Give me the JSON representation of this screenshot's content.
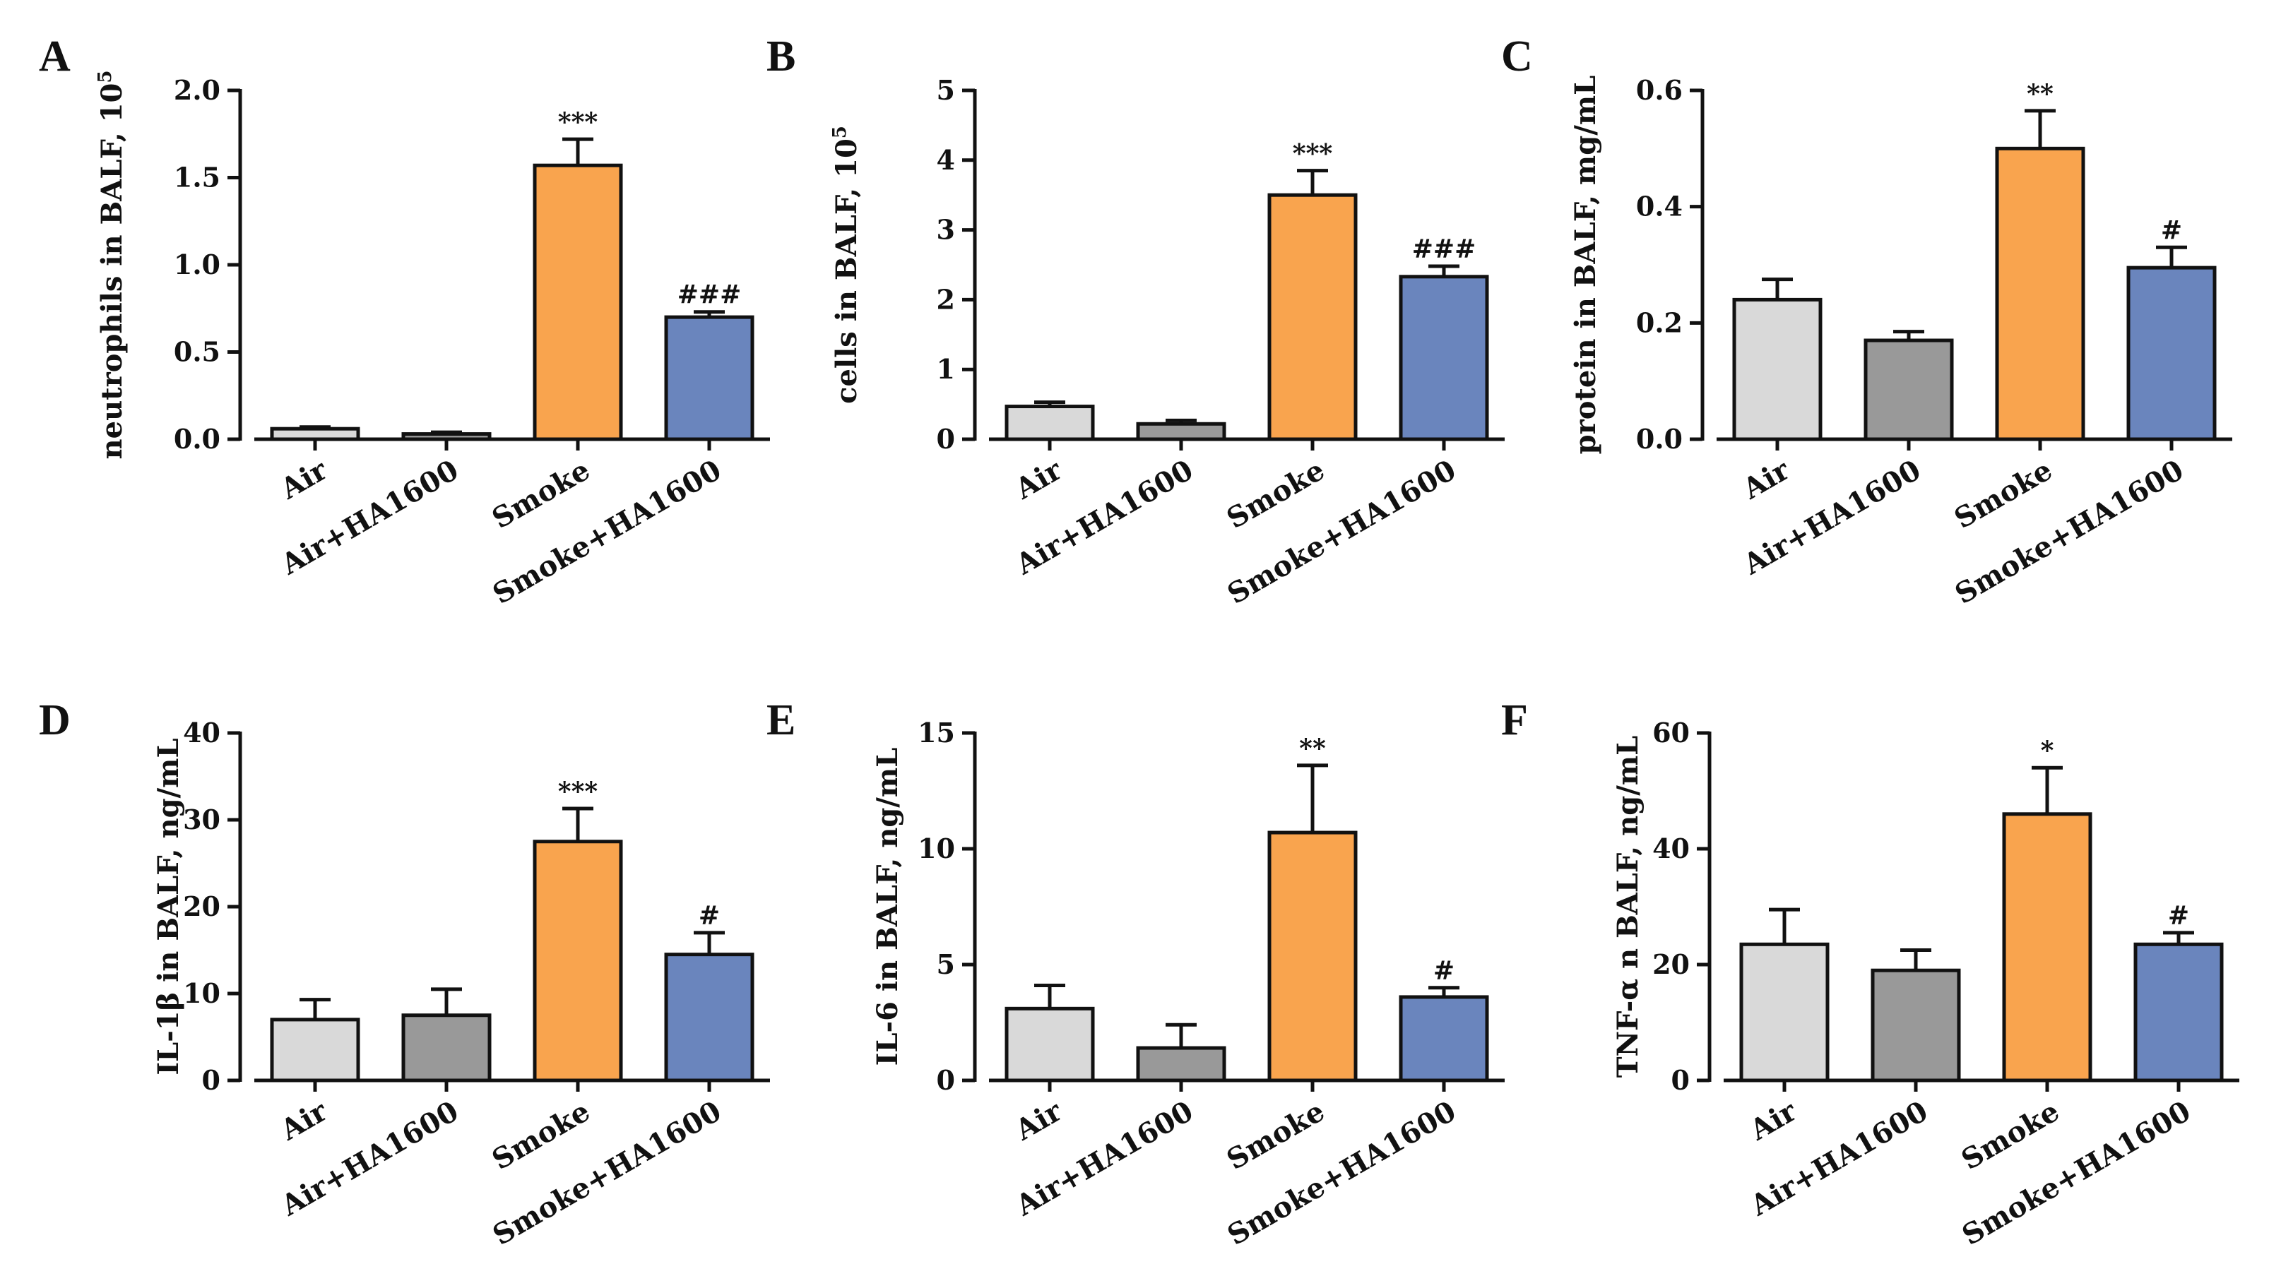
{
  "chart_data": [
    {
      "type": "bar",
      "panel": "A",
      "ylabel": "neutrophils in BALF, 10",
      "ylabel_sup": "5",
      "categories": [
        "Air",
        "Air+HA1600",
        "Smoke",
        "Smoke+HA1600"
      ],
      "values": [
        0.06,
        0.03,
        1.57,
        0.7
      ],
      "errors": [
        0.01,
        0.01,
        0.15,
        0.03
      ],
      "significance": [
        "",
        "",
        "***",
        "###"
      ],
      "ylim": [
        0,
        2.0
      ],
      "yticks": [
        "0.0",
        "0.5",
        "1.0",
        "1.5",
        "2.0"
      ],
      "tick_values": [
        0,
        0.5,
        1.0,
        1.5,
        2.0
      ]
    },
    {
      "type": "bar",
      "panel": "B",
      "ylabel": "cells in BALF, 10",
      "ylabel_sup": "5",
      "categories": [
        "Air",
        "Air+HA1600",
        "Smoke",
        "Smoke+HA1600"
      ],
      "values": [
        0.47,
        0.22,
        3.5,
        2.33
      ],
      "errors": [
        0.06,
        0.05,
        0.35,
        0.15
      ],
      "significance": [
        "",
        "",
        "***",
        "###"
      ],
      "ylim": [
        0,
        5
      ],
      "yticks": [
        "0",
        "1",
        "2",
        "3",
        "4",
        "5"
      ],
      "tick_values": [
        0,
        1,
        2,
        3,
        4,
        5
      ]
    },
    {
      "type": "bar",
      "panel": "C",
      "ylabel": "protein in BALF, mg/mL",
      "ylabel_sup": "",
      "categories": [
        "Air",
        "Air+HA1600",
        "Smoke",
        "Smoke+HA1600"
      ],
      "values": [
        0.24,
        0.17,
        0.5,
        0.295
      ],
      "errors": [
        0.035,
        0.015,
        0.065,
        0.035
      ],
      "significance": [
        "",
        "",
        "**",
        "#"
      ],
      "ylim": [
        0,
        0.6
      ],
      "yticks": [
        "0.0",
        "0.2",
        "0.4",
        "0.6"
      ],
      "tick_values": [
        0,
        0.2,
        0.4,
        0.6
      ]
    },
    {
      "type": "bar",
      "panel": "D",
      "ylabel": "IL-1β in BALF, ng/mL",
      "ylabel_sup": "",
      "categories": [
        "Air",
        "Air+HA1600",
        "Smoke",
        "Smoke+HA1600"
      ],
      "values": [
        7.0,
        7.5,
        27.5,
        14.5
      ],
      "errors": [
        2.3,
        3.0,
        3.8,
        2.5
      ],
      "significance": [
        "",
        "",
        "***",
        "#"
      ],
      "ylim": [
        0,
        40
      ],
      "yticks": [
        "0",
        "10",
        "20",
        "30",
        "40"
      ],
      "tick_values": [
        0,
        10,
        20,
        30,
        40
      ]
    },
    {
      "type": "bar",
      "panel": "E",
      "ylabel": "IL-6 in BALF, ng/mL",
      "ylabel_sup": "",
      "categories": [
        "Air",
        "Air+HA1600",
        "Smoke",
        "Smoke+HA1600"
      ],
      "values": [
        3.1,
        1.4,
        10.7,
        3.6
      ],
      "errors": [
        1.0,
        1.0,
        2.9,
        0.4
      ],
      "significance": [
        "",
        "",
        "**",
        "#"
      ],
      "ylim": [
        0,
        15
      ],
      "yticks": [
        "0",
        "5",
        "10",
        "15"
      ],
      "tick_values": [
        0,
        5,
        10,
        15
      ]
    },
    {
      "type": "bar",
      "panel": "F",
      "ylabel": "TNF-α  n BALF, ng/mL",
      "ylabel_sup": "",
      "categories": [
        "Air",
        "Air+HA1600",
        "Smoke",
        "Smoke+HA1600"
      ],
      "values": [
        23.5,
        19.0,
        46.0,
        23.5
      ],
      "errors": [
        6.0,
        3.5,
        8.0,
        2.0
      ],
      "significance": [
        "",
        "",
        "*",
        "#"
      ],
      "ylim": [
        0,
        60
      ],
      "yticks": [
        "0",
        "20",
        "40",
        "60"
      ],
      "tick_values": [
        0,
        20,
        40,
        60
      ]
    }
  ],
  "colors": {
    "bars": [
      "#d9d9d9",
      "#999999",
      "#f9a44e",
      "#6a85bd"
    ],
    "stroke": "#111111"
  }
}
